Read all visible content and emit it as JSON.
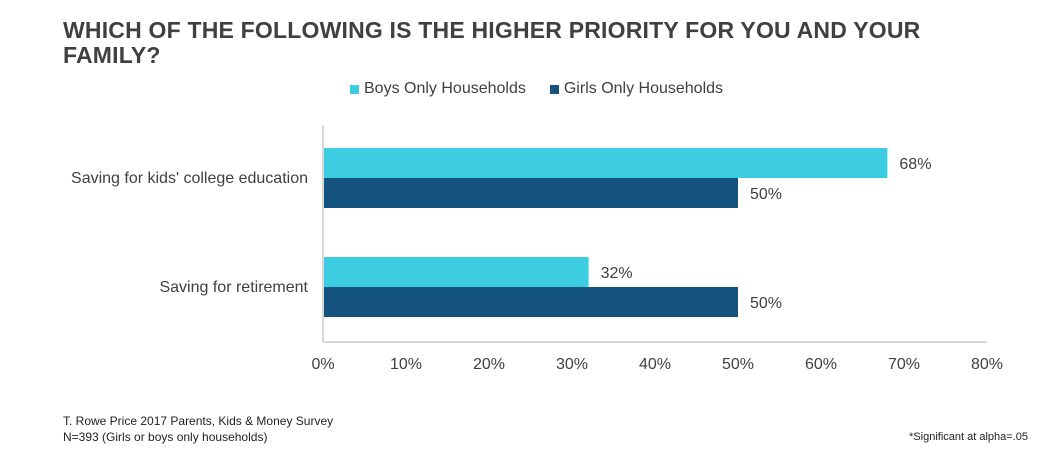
{
  "title": "WHICH OF THE FOLLOWING IS THE HIGHER PRIORITY FOR YOU AND YOUR FAMILY?",
  "legend": {
    "items": [
      {
        "label": "Boys Only Households",
        "color": "#3ccde3"
      },
      {
        "label": "Girls Only Households",
        "color": "#14537d"
      }
    ]
  },
  "chart_data": {
    "type": "bar",
    "orientation": "horizontal",
    "title": "WHICH OF THE FOLLOWING IS THE HIGHER PRIORITY FOR YOU AND YOUR FAMILY?",
    "categories": [
      "Saving for kids' college education",
      "Saving for retirement"
    ],
    "series": [
      {
        "name": "Boys Only Households",
        "color": "#3ccde3",
        "values": [
          68,
          32
        ],
        "labels": [
          "68%",
          "32%"
        ]
      },
      {
        "name": "Girls Only Households",
        "color": "#14537d",
        "values": [
          50,
          50
        ],
        "labels": [
          "50%",
          "50%"
        ]
      }
    ],
    "xlim": [
      0,
      80
    ],
    "xticks": [
      0,
      10,
      20,
      30,
      40,
      50,
      60,
      70,
      80
    ],
    "xtick_labels": [
      "0%",
      "10%",
      "20%",
      "30%",
      "40%",
      "50%",
      "60%",
      "70%",
      "80%"
    ],
    "xlabel": "",
    "ylabel": "",
    "grid": false,
    "legend_position": "top"
  },
  "footer": {
    "source": "T. Rowe Price 2017 Parents, Kids & Money Survey",
    "sample": "N=393 (Girls or boys only households)",
    "note": "*Significant at alpha=.05"
  }
}
